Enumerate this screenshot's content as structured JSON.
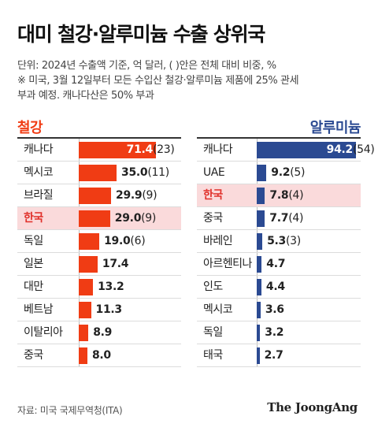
{
  "title": "대미 철강·알루미늄 수출 상위국",
  "notes": {
    "line1": "단위: 2024년 수출액 기준, 억 달러, ( )안은 전체 대비 비중, %",
    "line2": "※ 미국, 3월 12일부터 모든 수입산 철강·알루미늄 제품에 25% 관세",
    "line3": "부과 예정. 캐나다산은 50% 부과"
  },
  "source": "자료: 미국 국제무역청(ITA)",
  "brand": "The JoongAng",
  "colors": {
    "steel": "#f03c14",
    "aluminum": "#2b4a92",
    "highlight": "#fadadb"
  },
  "chart_data": [
    {
      "type": "bar",
      "orientation": "horizontal",
      "title": "철강",
      "highlight": "한국",
      "xlim": [
        0,
        71.4
      ],
      "categories": [
        "캐나다",
        "멕시코",
        "브라질",
        "한국",
        "독일",
        "일본",
        "대만",
        "베트남",
        "이탈리아",
        "중국"
      ],
      "values": [
        71.4,
        35.0,
        29.9,
        29.0,
        19.0,
        17.4,
        13.2,
        11.3,
        8.9,
        8.0
      ],
      "value_labels": [
        "71.4",
        "35.0",
        "29.9",
        "29.0",
        "19.0",
        "17.4",
        "13.2",
        "11.3",
        "8.9",
        "8.0"
      ],
      "shares": [
        "23",
        "11",
        "9",
        "9",
        "6",
        null,
        null,
        null,
        null,
        null
      ]
    },
    {
      "type": "bar",
      "orientation": "horizontal",
      "title": "알루미늄",
      "highlight": "한국",
      "xlim": [
        0,
        94.2
      ],
      "categories": [
        "캐나다",
        "UAE",
        "한국",
        "중국",
        "바레인",
        "아르헨티나",
        "인도",
        "멕시코",
        "독일",
        "태국"
      ],
      "values": [
        94.2,
        9.2,
        7.8,
        7.7,
        5.3,
        4.7,
        4.4,
        3.6,
        3.2,
        2.7
      ],
      "value_labels": [
        "94.2",
        "9.2",
        "7.8",
        "7.7",
        "5.3",
        "4.7",
        "4.4",
        "3.6",
        "3.2",
        "2.7"
      ],
      "shares": [
        "54",
        "5",
        "4",
        "4",
        "3",
        null,
        null,
        null,
        null,
        null
      ]
    }
  ]
}
